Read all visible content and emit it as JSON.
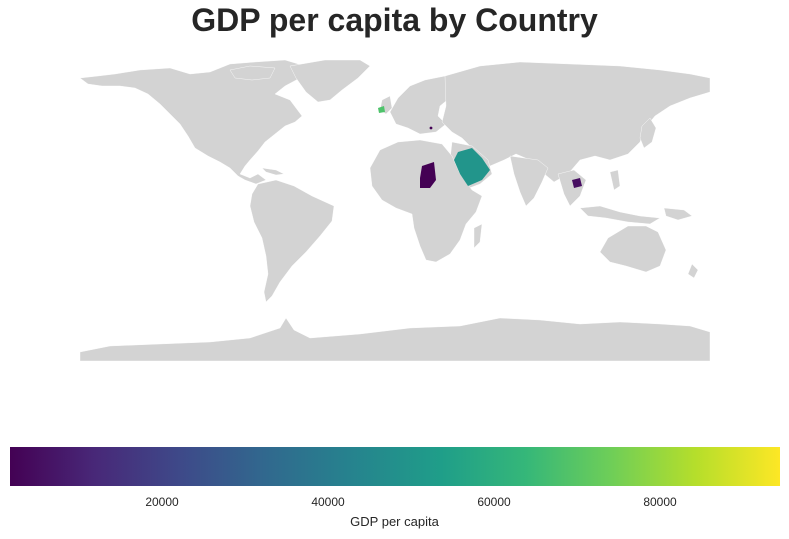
{
  "title": "GDP per capita by Country",
  "map": {
    "land_color": "#d3d3d3",
    "highlighted": [
      {
        "name": "Ireland",
        "color": "#4ec36b"
      },
      {
        "name": "Montenegro",
        "color": "#440154"
      },
      {
        "name": "Saudi Arabia",
        "color": "#22958b"
      },
      {
        "name": "Chad",
        "color": "#440154"
      },
      {
        "name": "Cambodia",
        "color": "#470e61"
      }
    ]
  },
  "colorbar": {
    "label": "GDP per capita",
    "colormap": "viridis",
    "min": 1000,
    "max": 94000,
    "ticks": [
      "20000",
      "40000",
      "60000",
      "80000"
    ]
  }
}
